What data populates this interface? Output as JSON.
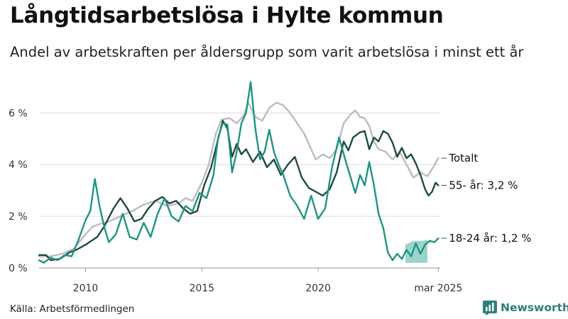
{
  "header": {
    "title": "Långtidsarbetslösa i Hylte kommun",
    "subtitle": "Andel av arbetskraften per åldersgrupp som varit arbetslösa i minst ett år"
  },
  "footer": {
    "source": "Källa: Arbetsförmedlingen",
    "brand": "Newsworthy"
  },
  "colors": {
    "totalt": "#bdbac5",
    "age55": "#1f4a40",
    "age1824": "#1e9484",
    "band": "#7cc5b7",
    "grid": "#dcdcdc",
    "brand": "#2e7f79"
  },
  "chart_data": {
    "type": "line",
    "title": "Långtidsarbetslösa i Hylte kommun",
    "subtitle": "Andel av arbetskraften per åldersgrupp som varit arbetslösa i minst ett år",
    "xlabel": "",
    "ylabel": "",
    "xlim": [
      2008.0,
      2025.25
    ],
    "ylim": [
      0,
      7.3
    ],
    "y_ticks": [
      {
        "value": 0,
        "label": "0 %"
      },
      {
        "value": 2,
        "label": "2 %"
      },
      {
        "value": 4,
        "label": "4 %"
      },
      {
        "value": 6,
        "label": "6 %"
      }
    ],
    "x_ticks": [
      {
        "value": 2010,
        "label": "2010"
      },
      {
        "value": 2015,
        "label": "2015"
      },
      {
        "value": 2020,
        "label": "2020"
      },
      {
        "value": 2025.17,
        "label": "mar 2025"
      }
    ],
    "grid": true,
    "series": [
      {
        "name": "Totalt",
        "end_label": "Totalt",
        "color_key": "totalt",
        "points": [
          [
            2008.0,
            0.45
          ],
          [
            2008.5,
            0.45
          ],
          [
            2009.0,
            0.55
          ],
          [
            2009.5,
            0.75
          ],
          [
            2010.0,
            1.3
          ],
          [
            2010.3,
            1.6
          ],
          [
            2010.6,
            1.7
          ],
          [
            2011.0,
            1.8
          ],
          [
            2011.5,
            2.0
          ],
          [
            2012.0,
            2.2
          ],
          [
            2012.5,
            2.45
          ],
          [
            2013.0,
            2.6
          ],
          [
            2013.5,
            2.4
          ],
          [
            2014.0,
            2.5
          ],
          [
            2014.3,
            2.7
          ],
          [
            2014.6,
            2.6
          ],
          [
            2015.0,
            3.3
          ],
          [
            2015.3,
            4.0
          ],
          [
            2015.6,
            5.2
          ],
          [
            2015.85,
            5.75
          ],
          [
            2016.2,
            5.8
          ],
          [
            2016.5,
            5.6
          ],
          [
            2016.8,
            5.9
          ],
          [
            2017.0,
            6.4
          ],
          [
            2017.3,
            5.85
          ],
          [
            2017.6,
            5.7
          ],
          [
            2017.9,
            6.2
          ],
          [
            2018.2,
            6.4
          ],
          [
            2018.5,
            6.3
          ],
          [
            2018.8,
            6.0
          ],
          [
            2019.1,
            5.6
          ],
          [
            2019.4,
            5.2
          ],
          [
            2019.7,
            4.6
          ],
          [
            2019.9,
            4.2
          ],
          [
            2020.2,
            4.4
          ],
          [
            2020.5,
            4.25
          ],
          [
            2020.8,
            4.6
          ],
          [
            2021.1,
            5.6
          ],
          [
            2021.4,
            5.95
          ],
          [
            2021.6,
            6.1
          ],
          [
            2021.8,
            5.85
          ],
          [
            2022.0,
            5.8
          ],
          [
            2022.2,
            5.5
          ],
          [
            2022.4,
            4.9
          ],
          [
            2022.6,
            4.6
          ],
          [
            2022.9,
            4.5
          ],
          [
            2023.2,
            4.2
          ],
          [
            2023.5,
            4.5
          ],
          [
            2023.8,
            4.0
          ],
          [
            2024.1,
            3.5
          ],
          [
            2024.4,
            3.7
          ],
          [
            2024.7,
            3.55
          ],
          [
            2024.95,
            3.9
          ],
          [
            2025.17,
            4.25
          ]
        ]
      },
      {
        "name": "55- år",
        "end_label": "55- år: 3,2 %",
        "color_key": "age55",
        "points": [
          [
            2008.0,
            0.5
          ],
          [
            2008.3,
            0.5
          ],
          [
            2008.5,
            0.3
          ],
          [
            2008.9,
            0.35
          ],
          [
            2009.3,
            0.6
          ],
          [
            2009.6,
            0.7
          ],
          [
            2010.0,
            0.9
          ],
          [
            2010.5,
            1.2
          ],
          [
            2010.8,
            1.6
          ],
          [
            2011.2,
            2.3
          ],
          [
            2011.5,
            2.7
          ],
          [
            2011.8,
            2.3
          ],
          [
            2012.1,
            1.8
          ],
          [
            2012.4,
            1.9
          ],
          [
            2012.7,
            2.3
          ],
          [
            2013.0,
            2.6
          ],
          [
            2013.3,
            2.75
          ],
          [
            2013.6,
            2.5
          ],
          [
            2013.9,
            2.6
          ],
          [
            2014.2,
            2.3
          ],
          [
            2014.5,
            2.1
          ],
          [
            2014.8,
            2.2
          ],
          [
            2015.1,
            3.2
          ],
          [
            2015.4,
            3.9
          ],
          [
            2015.7,
            5.0
          ],
          [
            2015.9,
            5.7
          ],
          [
            2016.1,
            5.4
          ],
          [
            2016.3,
            4.3
          ],
          [
            2016.5,
            4.8
          ],
          [
            2016.7,
            4.4
          ],
          [
            2016.9,
            4.6
          ],
          [
            2017.2,
            4.1
          ],
          [
            2017.5,
            4.5
          ],
          [
            2017.8,
            3.9
          ],
          [
            2018.1,
            4.2
          ],
          [
            2018.4,
            3.6
          ],
          [
            2018.7,
            4.0
          ],
          [
            2019.0,
            4.3
          ],
          [
            2019.3,
            3.5
          ],
          [
            2019.6,
            3.1
          ],
          [
            2019.9,
            2.95
          ],
          [
            2020.2,
            2.8
          ],
          [
            2020.5,
            3.05
          ],
          [
            2020.8,
            3.7
          ],
          [
            2021.1,
            4.9
          ],
          [
            2021.3,
            4.55
          ],
          [
            2021.5,
            5.05
          ],
          [
            2021.8,
            5.25
          ],
          [
            2022.0,
            5.3
          ],
          [
            2022.2,
            4.6
          ],
          [
            2022.4,
            5.05
          ],
          [
            2022.6,
            4.9
          ],
          [
            2022.8,
            5.3
          ],
          [
            2023.0,
            5.2
          ],
          [
            2023.2,
            4.85
          ],
          [
            2023.4,
            4.3
          ],
          [
            2023.6,
            4.65
          ],
          [
            2023.8,
            4.25
          ],
          [
            2024.0,
            4.4
          ],
          [
            2024.2,
            4.05
          ],
          [
            2024.4,
            3.6
          ],
          [
            2024.6,
            3.05
          ],
          [
            2024.75,
            2.8
          ],
          [
            2024.9,
            2.95
          ],
          [
            2025.05,
            3.3
          ],
          [
            2025.17,
            3.2
          ]
        ]
      },
      {
        "name": "18-24 år",
        "end_label": "18-24 år: 1,2 %",
        "color_key": "age1824",
        "points": [
          [
            2008.0,
            0.3
          ],
          [
            2008.2,
            0.2
          ],
          [
            2008.5,
            0.4
          ],
          [
            2008.8,
            0.3
          ],
          [
            2009.1,
            0.5
          ],
          [
            2009.4,
            0.45
          ],
          [
            2009.7,
            1.1
          ],
          [
            2010.0,
            1.85
          ],
          [
            2010.2,
            2.2
          ],
          [
            2010.4,
            3.45
          ],
          [
            2010.6,
            2.4
          ],
          [
            2010.8,
            1.6
          ],
          [
            2011.0,
            1.0
          ],
          [
            2011.3,
            1.3
          ],
          [
            2011.6,
            2.1
          ],
          [
            2011.9,
            1.2
          ],
          [
            2012.2,
            1.1
          ],
          [
            2012.5,
            1.75
          ],
          [
            2012.8,
            1.2
          ],
          [
            2013.1,
            2.1
          ],
          [
            2013.4,
            2.7
          ],
          [
            2013.7,
            2.0
          ],
          [
            2014.0,
            1.8
          ],
          [
            2014.3,
            2.4
          ],
          [
            2014.6,
            2.2
          ],
          [
            2014.9,
            2.9
          ],
          [
            2015.2,
            2.7
          ],
          [
            2015.5,
            3.6
          ],
          [
            2015.7,
            5.05
          ],
          [
            2015.9,
            5.6
          ],
          [
            2016.1,
            5.55
          ],
          [
            2016.3,
            3.7
          ],
          [
            2016.5,
            4.5
          ],
          [
            2016.7,
            5.6
          ],
          [
            2016.9,
            6.0
          ],
          [
            2017.1,
            7.2
          ],
          [
            2017.3,
            5.4
          ],
          [
            2017.5,
            4.2
          ],
          [
            2017.7,
            4.5
          ],
          [
            2017.9,
            5.35
          ],
          [
            2018.1,
            4.5
          ],
          [
            2018.3,
            4.0
          ],
          [
            2018.5,
            3.6
          ],
          [
            2018.8,
            2.8
          ],
          [
            2019.1,
            2.4
          ],
          [
            2019.4,
            1.9
          ],
          [
            2019.7,
            2.8
          ],
          [
            2020.0,
            1.9
          ],
          [
            2020.3,
            2.3
          ],
          [
            2020.6,
            3.9
          ],
          [
            2020.9,
            5.05
          ],
          [
            2021.2,
            4.1
          ],
          [
            2021.4,
            3.5
          ],
          [
            2021.6,
            2.9
          ],
          [
            2021.8,
            3.6
          ],
          [
            2022.0,
            3.2
          ],
          [
            2022.2,
            4.1
          ],
          [
            2022.4,
            3.2
          ],
          [
            2022.6,
            2.1
          ],
          [
            2022.8,
            1.55
          ],
          [
            2023.0,
            0.6
          ],
          [
            2023.2,
            0.3
          ],
          [
            2023.4,
            0.55
          ],
          [
            2023.6,
            0.35
          ],
          [
            2023.8,
            0.7
          ],
          [
            2024.0,
            0.45
          ],
          [
            2024.2,
            0.95
          ],
          [
            2024.4,
            0.55
          ],
          [
            2024.6,
            0.9
          ],
          [
            2024.8,
            1.05
          ],
          [
            2025.0,
            1.0
          ],
          [
            2025.17,
            1.15
          ]
        ],
        "band": [
          [
            2023.75,
            0.2,
            0.9
          ],
          [
            2024.1,
            0.2,
            1.05
          ],
          [
            2024.5,
            0.2,
            1.05
          ],
          [
            2024.7,
            0.2,
            1.1
          ]
        ]
      }
    ]
  }
}
